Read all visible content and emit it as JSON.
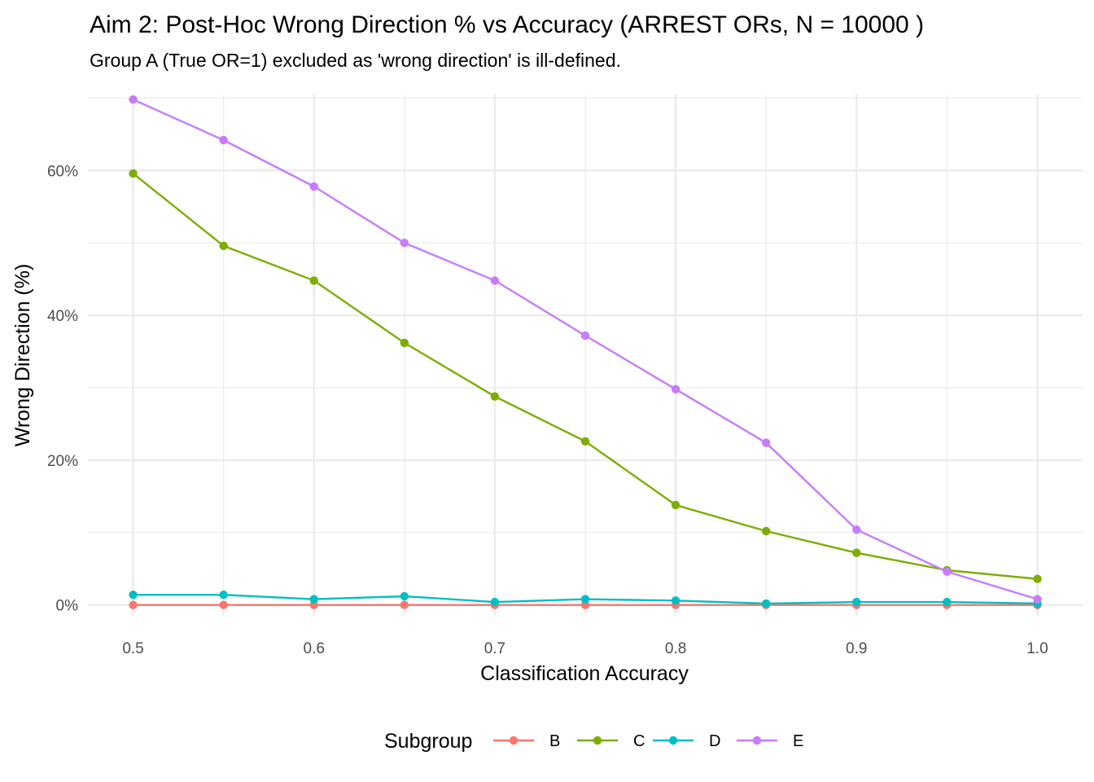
{
  "chart_data": {
    "type": "line",
    "title": "Aim 2: Post-Hoc Wrong Direction % vs Accuracy (ARREST ORs, N = 10000 )",
    "subtitle": "Group A (True OR=1) excluded as 'wrong direction' is ill-defined.",
    "xlabel": "Classification Accuracy",
    "ylabel": "Wrong Direction (%)",
    "x": [
      0.5,
      0.55,
      0.6,
      0.65,
      0.7,
      0.75,
      0.8,
      0.85,
      0.9,
      0.95,
      1.0
    ],
    "xticks": [
      0.5,
      0.6,
      0.7,
      0.8,
      0.9,
      1.0
    ],
    "xtick_labels": [
      "0.5",
      "0.6",
      "0.7",
      "0.8",
      "0.9",
      "1.0"
    ],
    "yticks": [
      0,
      20,
      40,
      60
    ],
    "ytick_labels": [
      "0%",
      "20%",
      "40%",
      "60%"
    ],
    "xlim": [
      0.475,
      1.025
    ],
    "ylim": [
      -1.5,
      70.5
    ],
    "grid": true,
    "legend": {
      "title": "Subgroup",
      "position": "bottom"
    },
    "series": [
      {
        "name": "B",
        "color": "#F8766D",
        "values": [
          0,
          0,
          0,
          0,
          0,
          0,
          0,
          0,
          0,
          0,
          0
        ]
      },
      {
        "name": "C",
        "color": "#7CAE00",
        "values": [
          59.6,
          49.6,
          44.8,
          36.2,
          28.8,
          22.6,
          13.8,
          10.2,
          7.2,
          4.8,
          3.6
        ]
      },
      {
        "name": "D",
        "color": "#00BFC4",
        "values": [
          1.4,
          1.4,
          0.8,
          1.2,
          0.4,
          0.8,
          0.6,
          0.2,
          0.4,
          0.4,
          0.2
        ]
      },
      {
        "name": "E",
        "color": "#C77CFF",
        "values": [
          69.8,
          64.2,
          57.8,
          50.0,
          44.8,
          37.2,
          29.8,
          22.4,
          10.4,
          4.6,
          0.8
        ]
      }
    ]
  }
}
